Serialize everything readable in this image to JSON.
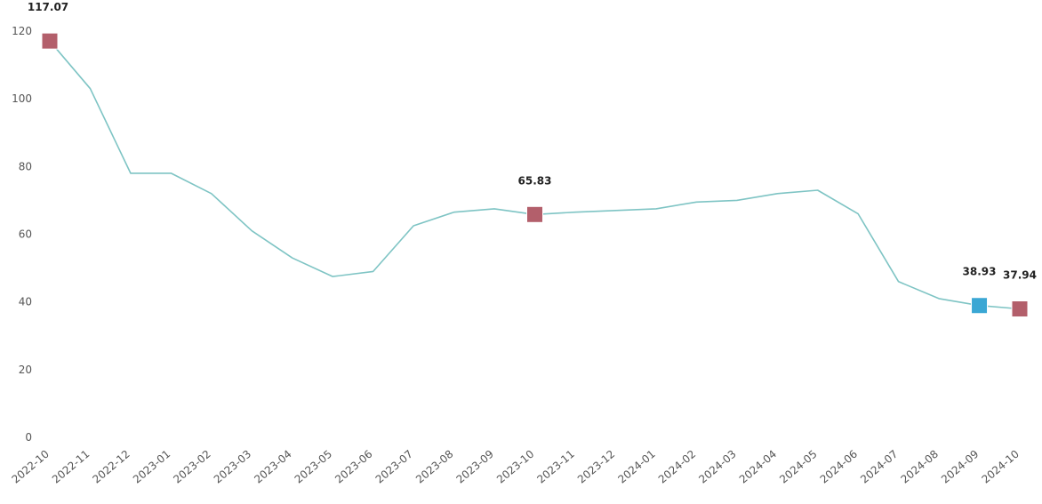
{
  "chart_data": {
    "type": "line",
    "title": "",
    "xlabel": "",
    "ylabel": "",
    "ylim": [
      0,
      120
    ],
    "yticks": [
      0,
      20,
      40,
      60,
      80,
      100,
      120
    ],
    "grid": false,
    "legend": "none",
    "colors": {
      "line": "#7ec4c4",
      "marker_red": "#b35f6b",
      "marker_blue": "#3aa7d4"
    },
    "categories": [
      "2022-10",
      "2022-11",
      "2022-12",
      "2023-01",
      "2023-02",
      "2023-03",
      "2023-04",
      "2023-05",
      "2023-06",
      "2023-07",
      "2023-08",
      "2023-09",
      "2023-10",
      "2023-11",
      "2023-12",
      "2024-01",
      "2024-02",
      "2024-03",
      "2024-04",
      "2024-05",
      "2024-06",
      "2024-07",
      "2024-08",
      "2024-09",
      "2024-10"
    ],
    "series": [
      {
        "values": [
          117.07,
          103,
          78,
          78,
          72,
          61,
          53,
          47.5,
          49,
          62.5,
          66.5,
          67.5,
          65.83,
          66.5,
          67,
          67.5,
          69.5,
          70,
          72,
          73,
          66,
          46,
          41,
          38.93,
          37.94
        ]
      }
    ],
    "markers": [
      {
        "index": 0,
        "label": "117.07",
        "color": "red"
      },
      {
        "index": 12,
        "label": "65.83",
        "color": "red"
      },
      {
        "index": 23,
        "label": "38.93",
        "color": "blue"
      },
      {
        "index": 24,
        "label": "37.94",
        "color": "red"
      }
    ]
  }
}
